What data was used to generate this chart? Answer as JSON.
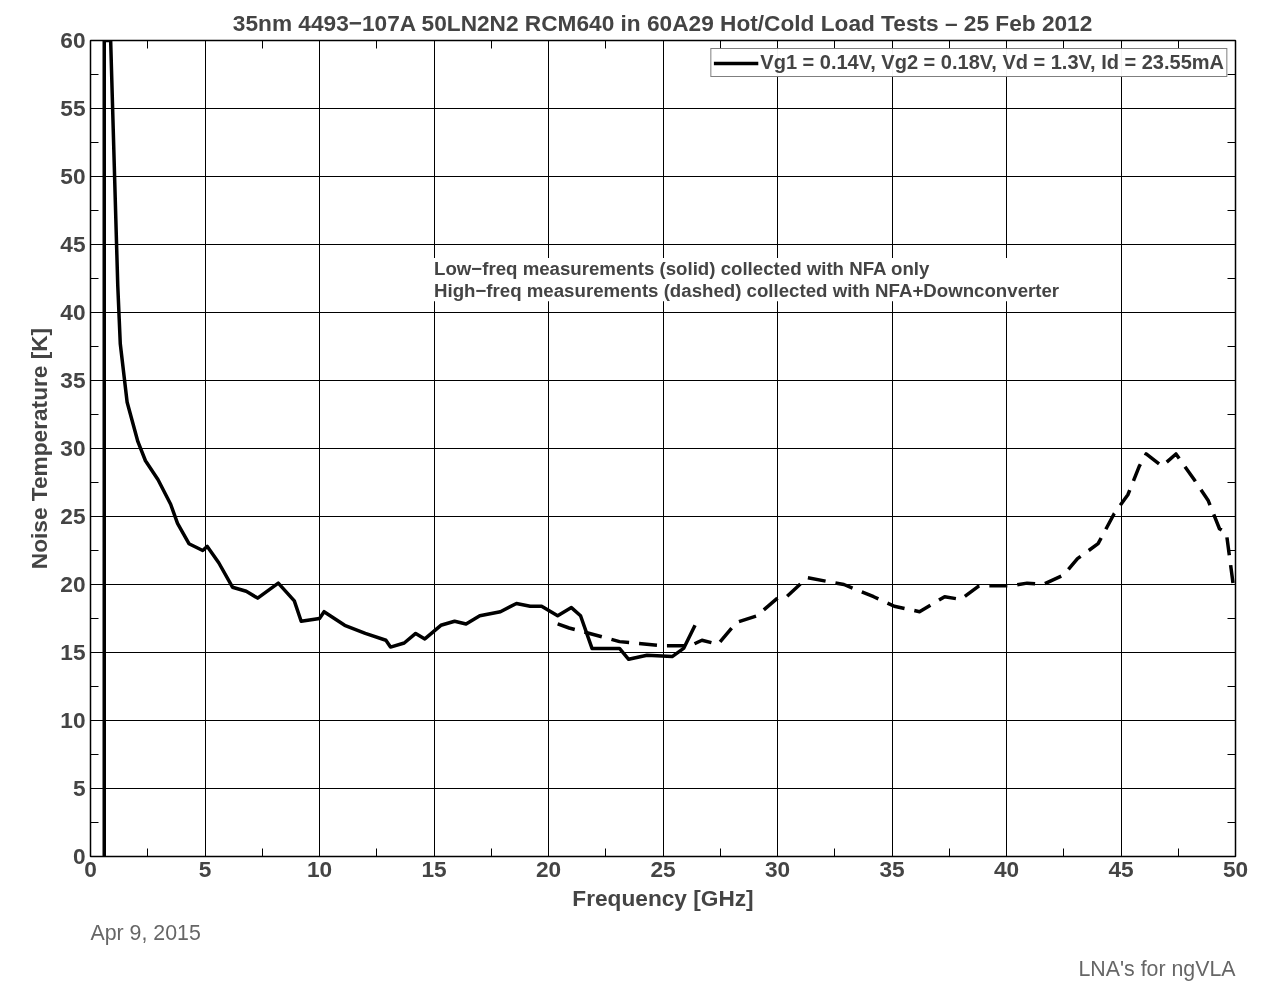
{
  "chart_data": {
    "type": "line",
    "title": "35nm 4493−107A 50LN2N2 RCM640 in 60A29 Hot/Cold Load Tests – 25 Feb 2012",
    "xlabel": "Frequency [GHz]",
    "ylabel": "Noise Temperature [K]",
    "xlim": [
      0,
      50
    ],
    "ylim": [
      0,
      60
    ],
    "xticks": [
      0,
      5,
      10,
      15,
      20,
      25,
      30,
      35,
      40,
      45,
      50
    ],
    "yticks": [
      0,
      5,
      10,
      15,
      20,
      25,
      30,
      35,
      40,
      45,
      50,
      55,
      60
    ],
    "grid": true,
    "legend": "top right",
    "marker": "none",
    "annotations": [
      "Low−freq measurements (solid) collected with NFA only\nHigh−freq measurements (dashed) collected with NFA+Downconverter",
      "Apr 9, 2015",
      "LNA's for ngVLA"
    ],
    "series": [
      {
        "name": "Vg1 = 0.14V, Vg2 = 0.18V, Vd = 1.3V, Id = 23.55mA",
        "color": "#000000",
        "line_style": "solid",
        "x": [
          0.6,
          0.6,
          0.88,
          1.19,
          1.3,
          1.6,
          2.07,
          2.4,
          2.95,
          3.5,
          3.8,
          4.3,
          4.9,
          5.1,
          5.6,
          6.2,
          6.8,
          7.3,
          8.2,
          8.9,
          9.2,
          10,
          10.2,
          11.1,
          12,
          12.9,
          13.1,
          13.7,
          14.2,
          14.6,
          15.3,
          15.9,
          16.4,
          17,
          17.9,
          18.6,
          19.2,
          19.7,
          20.4,
          21,
          21.4,
          21.9,
          23.1,
          23.5,
          24.3,
          25.4,
          25.9,
          26.4
        ],
        "values": [
          0,
          60,
          60,
          42,
          37.7,
          33.4,
          30.5,
          29.1,
          27.7,
          25.9,
          24.5,
          23,
          22.5,
          22.8,
          21.6,
          19.8,
          19.5,
          19,
          20.1,
          18.8,
          17.3,
          17.5,
          18,
          17,
          16.4,
          15.9,
          15.4,
          15.7,
          16.4,
          16,
          17,
          17.3,
          17.1,
          17.7,
          18,
          18.6,
          18.4,
          18.4,
          17.7,
          18.3,
          17.7,
          15.3,
          15.3,
          14.5,
          14.8,
          14.7,
          15.3,
          17
        ]
      },
      {
        "color": "#000000",
        "line_style": "dashed",
        "x": [
          20.4,
          20.9,
          21.8,
          23.1,
          24.9,
          26.2,
          26.7,
          27.4,
          28.2,
          29.1,
          30,
          30.4,
          31.3,
          32.9,
          34.2,
          35.1,
          36.2,
          37.3,
          38,
          38.8,
          40.2,
          40.9,
          41.6,
          42.5,
          43.1,
          44,
          44.7,
          45.3,
          45.8,
          46.1,
          46.8,
          47.4,
          48.2,
          48.8,
          49.3,
          49.6,
          49.9
        ],
        "values": [
          17.1,
          16.8,
          16.4,
          15.8,
          15.5,
          15.5,
          15.9,
          15.6,
          17.2,
          17.7,
          19,
          19.1,
          20.5,
          20,
          19.1,
          18.4,
          18,
          19.1,
          18.9,
          19.9,
          19.9,
          20.1,
          20,
          20.7,
          21.9,
          23,
          25.2,
          26.6,
          28.7,
          29.6,
          28.7,
          29.6,
          27.7,
          26.2,
          24.1,
          23.8,
          20
        ]
      }
    ]
  }
}
